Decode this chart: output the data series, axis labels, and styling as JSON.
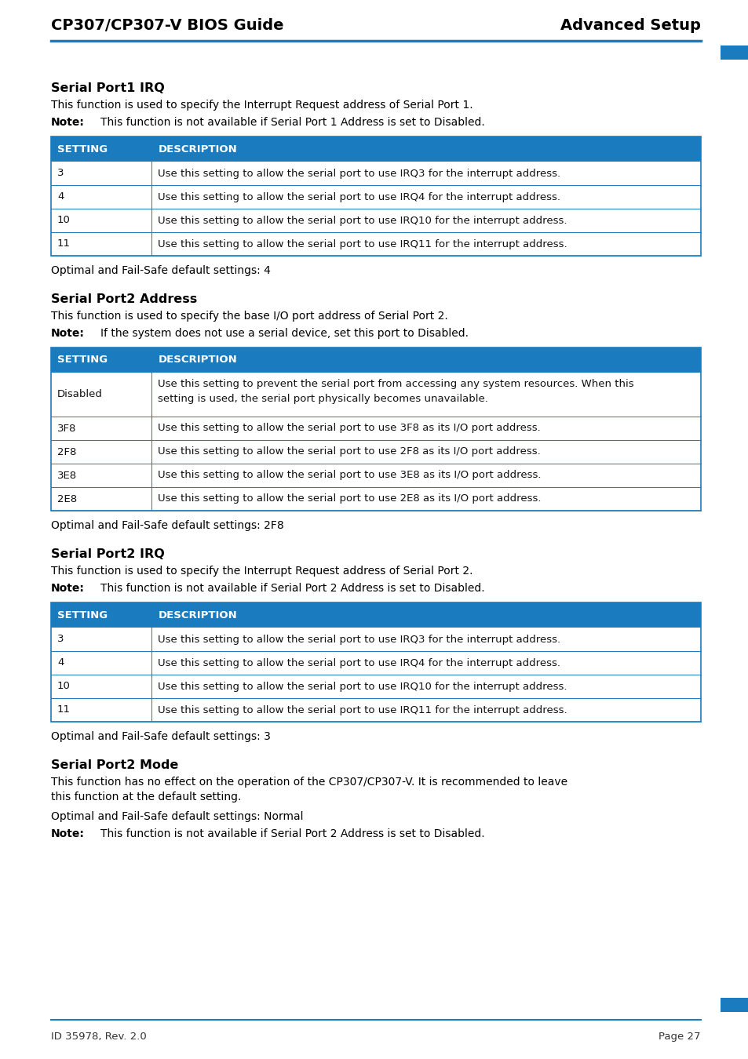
{
  "header_left": "CP307/CP307-V BIOS Guide",
  "header_right": "Advanced Setup",
  "footer_left": "ID 35978, Rev. 2.0",
  "footer_right": "Page 27",
  "header_line_color": "#1a7bbf",
  "table_header_bg": "#1a7bbf",
  "table_header_text": "#ffffff",
  "table_border_color": "#1a7bbf",
  "table_row_bg": "#ffffff",
  "corner_color": "#1a7bbf",
  "sections": [
    {
      "title": "Serial Port1 IRQ",
      "intro": "This function is used to specify the Interrupt Request address of Serial Port 1.",
      "note_label": "Note:",
      "note_text": "This function is not available if Serial Port 1 Address is set to Disabled.",
      "table": {
        "col1_header": "SETTING",
        "col2_header": "DESCRIPTION",
        "rows": [
          [
            "3",
            "Use this setting to allow the serial port to use IRQ3 for the interrupt address."
          ],
          [
            "4",
            "Use this setting to allow the serial port to use IRQ4 for the interrupt address."
          ],
          [
            "10",
            "Use this setting to allow the serial port to use IRQ10 for the interrupt address."
          ],
          [
            "11",
            "Use this setting to allow the serial port to use IRQ11 for the interrupt address."
          ]
        ]
      },
      "default": "Optimal and Fail-Safe default settings: 4"
    },
    {
      "title": "Serial Port2 Address",
      "intro": "This function is used to specify the base I/O port address of Serial Port 2.",
      "note_label": "Note:",
      "note_text": "If the system does not use a serial device, set this port to Disabled.",
      "table": {
        "col1_header": "SETTING",
        "col2_header": "DESCRIPTION",
        "rows": [
          [
            "Disabled",
            "Use this setting to prevent the serial port from accessing any system resources. When this\nsetting is used, the serial port physically becomes unavailable."
          ],
          [
            "3F8",
            "Use this setting to allow the serial port to use 3F8 as its I/O port address."
          ],
          [
            "2F8",
            "Use this setting to allow the serial port to use 2F8 as its I/O port address."
          ],
          [
            "3E8",
            "Use this setting to allow the serial port to use 3E8 as its I/O port address."
          ],
          [
            "2E8",
            "Use this setting to allow the serial port to use 2E8 as its I/O port address."
          ]
        ]
      },
      "default": "Optimal and Fail-Safe default settings: 2F8"
    },
    {
      "title": "Serial Port2 IRQ",
      "intro": "This function is used to specify the Interrupt Request address of Serial Port 2.",
      "note_label": "Note:",
      "note_text": "This function is not available if Serial Port 2 Address is set to Disabled.",
      "table": {
        "col1_header": "SETTING",
        "col2_header": "DESCRIPTION",
        "rows": [
          [
            "3",
            "Use this setting to allow the serial port to use IRQ3 for the interrupt address."
          ],
          [
            "4",
            "Use this setting to allow the serial port to use IRQ4 for the interrupt address."
          ],
          [
            "10",
            "Use this setting to allow the serial port to use IRQ10 for the interrupt address."
          ],
          [
            "11",
            "Use this setting to allow the serial port to use IRQ11 for the interrupt address."
          ]
        ]
      },
      "default": "Optimal and Fail-Safe default settings: 3"
    },
    {
      "title": "Serial Port2 Mode",
      "intro": "This function has no effect on the operation of the CP307/CP307-V. It is recommended to leave\nthis function at the default setting.",
      "note_label": null,
      "note_text": null,
      "table": null,
      "default": "Optimal and Fail-Safe default settings: Normal",
      "extra_note_label": "Note:",
      "extra_note_text": "This function is not available if Serial Port 2 Address is set to Disabled."
    }
  ]
}
